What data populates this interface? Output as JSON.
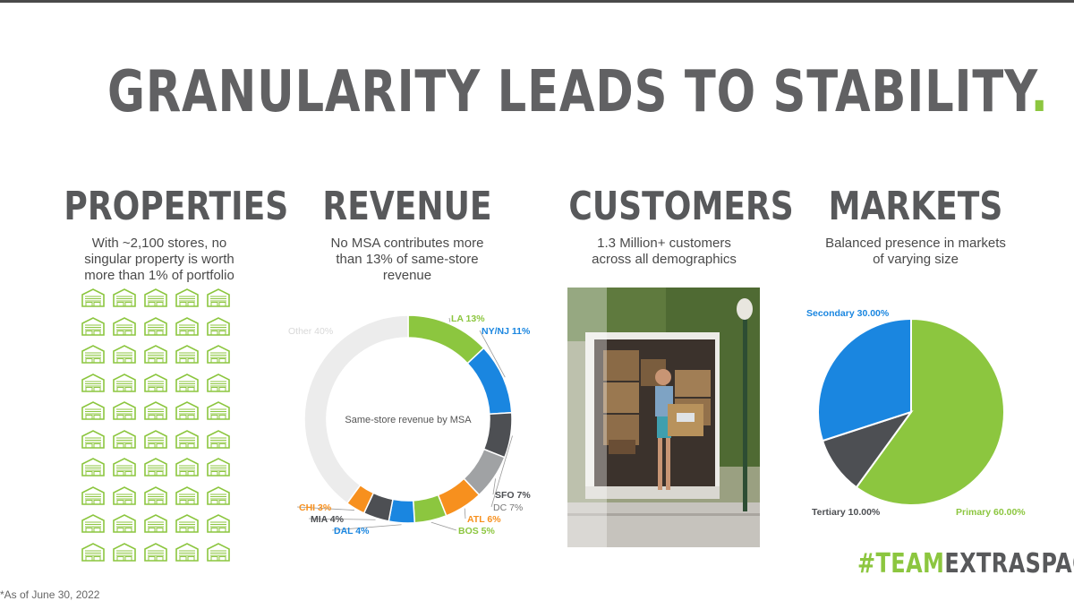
{
  "title": "GRANULARITY LEADS TO STABILITY",
  "title_dot": ".",
  "columns": {
    "properties": {
      "heading": "PROPERTIES",
      "lines": [
        "With ~2,100 stores, no",
        "singular property is worth",
        "more than 1% of portfolio"
      ]
    },
    "revenue": {
      "heading": "REVENUE",
      "lines": [
        "No MSA contributes more",
        "than 13% of same-store",
        "revenue"
      ]
    },
    "customers": {
      "heading": "CUSTOMERS",
      "lines": [
        "1.3 Million+ customers",
        "across all demographics"
      ]
    },
    "markets": {
      "heading": "MARKETS",
      "lines": [
        "Balanced presence in markets",
        "of varying size"
      ]
    }
  },
  "store_icon": "storage-building-icon",
  "store_grid": {
    "rows": 10,
    "cols": 5
  },
  "photo_icon": "mover-truck-photo",
  "footnote": "*As of June 30, 2022",
  "brand": {
    "part1": "#TEAM",
    "part2": "EXTRASPACE"
  },
  "colors": {
    "green": "#8cc63f",
    "blue": "#1a86e0",
    "dark": "#4d4f53",
    "gray": "#a0a2a4",
    "orange": "#f7901e",
    "light": "#ececec",
    "heading": "#58595b"
  },
  "chart_data": [
    {
      "type": "pie",
      "variant": "donut",
      "center_label": "Same-store revenue by MSA",
      "slices": [
        {
          "label": "LA",
          "value": 13,
          "display": "LA 13%",
          "color": "#8cc63f"
        },
        {
          "label": "NY/NJ",
          "value": 11,
          "display": "NY/NJ 11%",
          "color": "#1a86e0"
        },
        {
          "label": "DC",
          "value": 7,
          "display": "DC 7%",
          "color": "#4d4f53"
        },
        {
          "label": "SFO",
          "value": 7,
          "display": "SFO 7%",
          "color": "#a0a2a4"
        },
        {
          "label": "ATL",
          "value": 6,
          "display": "ATL 6%",
          "color": "#f7901e"
        },
        {
          "label": "BOS",
          "value": 5,
          "display": "BOS 5%",
          "color": "#8cc63f"
        },
        {
          "label": "DAL",
          "value": 4,
          "display": "DAL 4%",
          "color": "#1a86e0"
        },
        {
          "label": "MIA",
          "value": 4,
          "display": "MIA 4%",
          "color": "#4d4f53"
        },
        {
          "label": "CHI",
          "value": 3,
          "display": "CHI 3%",
          "color": "#f7901e"
        },
        {
          "label": "Other",
          "value": 40,
          "display": "Other 40%",
          "color": "#ececec"
        }
      ]
    },
    {
      "type": "pie",
      "slices": [
        {
          "label": "Primary",
          "value": 60,
          "display": "Primary 60.00%",
          "color": "#8cc63f"
        },
        {
          "label": "Tertiary",
          "value": 10,
          "display": "Tertiary 10.00%",
          "color": "#4d4f53"
        },
        {
          "label": "Secondary",
          "value": 30,
          "display": "Secondary 30.00%",
          "color": "#1a86e0"
        }
      ]
    }
  ]
}
